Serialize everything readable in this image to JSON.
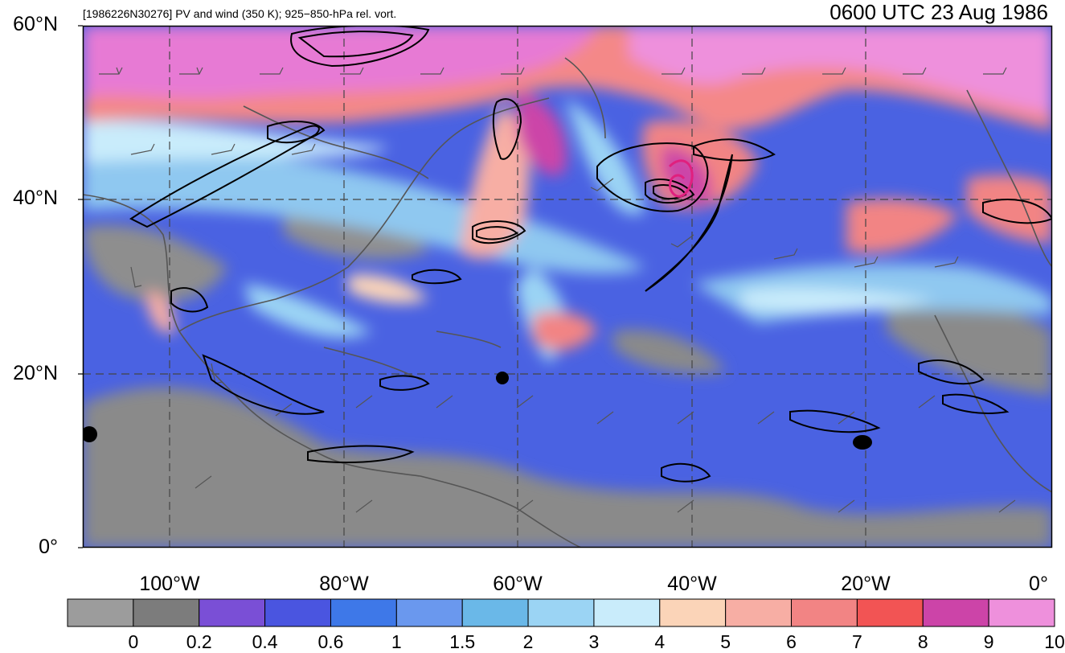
{
  "header": {
    "left_title": "[1986226N30276] PV and wind (350 K); 925−850-hPa rel. vort.",
    "right_title": "0600 UTC 23 Aug 1986"
  },
  "axes": {
    "lat_labels": [
      "60°N",
      "40°N",
      "20°N",
      "0°"
    ],
    "lon_labels": [
      "100°W",
      "80°W",
      "60°W",
      "40°W",
      "20°W",
      "0°"
    ]
  },
  "colorbar": {
    "labels": [
      "0",
      "0.2",
      "0.4",
      "0.6",
      "1",
      "1.5",
      "2",
      "3",
      "4",
      "5",
      "6",
      "7",
      "8",
      "9",
      "10"
    ],
    "colors": [
      "#9c9c9c",
      "#7c7c7c",
      "#7a4fd6",
      "#4a55e0",
      "#3e78e8",
      "#6a98ee",
      "#6ab8e8",
      "#9bd4f4",
      "#c9ecfb",
      "#fbd4b8",
      "#f7aea4",
      "#f28484",
      "#f25454",
      "#cc44a8",
      "#ee90dc"
    ]
  },
  "map_colors": {
    "background": "#4a62e2",
    "contour": "#000000",
    "coast": "#555555",
    "grid": "#444444",
    "magenta_contour": "#e0207e"
  }
}
